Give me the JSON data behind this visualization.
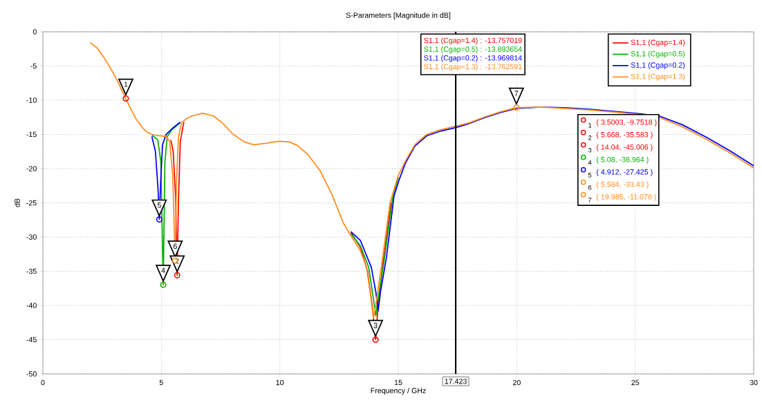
{
  "chart_data": {
    "type": "line",
    "title": "S-Parameters [Magnitude in dB]",
    "xlabel": "Frequency / GHz",
    "ylabel": "dB",
    "xlim": [
      0,
      30
    ],
    "ylim": [
      -50,
      0
    ],
    "xticks": [
      0,
      5,
      10,
      15,
      20,
      25,
      30
    ],
    "yticks": [
      0,
      -5,
      -10,
      -15,
      -20,
      -25,
      -30,
      -35,
      -40,
      -45,
      -50
    ],
    "grid": true,
    "legend": "top right",
    "series": [
      {
        "name": "S1,1 (Cgap=1.4)",
        "color": "#ff0000",
        "x": [
          5.4,
          5.5,
          5.6,
          5.668,
          5.72,
          5.8,
          5.95,
          9.0,
          13.0,
          13.4,
          13.7,
          13.9,
          14.04,
          14.15,
          14.35,
          14.7
        ],
        "values": [
          -15.8,
          -17.5,
          -24,
          -35.6,
          -25,
          -16,
          -13.2,
          null,
          -29.3,
          -31.5,
          -35,
          -40,
          -45.0,
          -40,
          -34,
          -25
        ]
      },
      {
        "name": "S1,1 (Cgap=0.5)",
        "color": "#00b000",
        "x": [
          4.6,
          4.85,
          4.98,
          5.08,
          5.15,
          5.25,
          5.45,
          5.8,
          9.0,
          13.0,
          13.4,
          13.75,
          13.95,
          14.05,
          14.15,
          14.4,
          14.75,
          15.0
        ],
        "values": [
          -15.1,
          -15.8,
          -19,
          -37.0,
          -19,
          -15.3,
          -14.3,
          -13.3,
          null,
          -29.5,
          -31.3,
          -34.4,
          -39,
          -41.5,
          -39,
          -33.5,
          -24.5,
          -21.3
        ]
      },
      {
        "name": "S1,1 (Cgap=0.2)",
        "color": "#0000ff",
        "x": [
          4.6,
          4.75,
          4.86,
          4.912,
          4.97,
          5.05,
          5.2,
          5.5,
          5.8,
          9.0,
          13.0,
          13.4,
          13.86,
          14.05,
          14.15,
          14.25,
          14.5,
          14.82,
          15.05,
          15.3,
          15.7,
          16.2,
          16.8,
          17.423,
          18.0,
          18.6,
          19.3,
          19.985,
          21.0,
          22.0,
          23.0,
          24.0,
          25.0,
          26.0,
          27.0,
          28.0,
          29.0,
          30.0
        ],
        "values": [
          -15.3,
          -17.5,
          -23,
          -27.4,
          -22,
          -16.5,
          -15.0,
          -14.0,
          -13.2,
          null,
          -29.2,
          -30.5,
          -34.4,
          -38,
          -40.8,
          -38,
          -33,
          -24,
          -21.5,
          -19.2,
          -16.7,
          -15.2,
          -14.5,
          -14.0,
          -13.4,
          -12.6,
          -11.8,
          -11.2,
          -11.0,
          -11.1,
          -11.3,
          -11.6,
          -11.9,
          -12.3,
          -13.6,
          -15.4,
          -17.4,
          -19.6
        ]
      },
      {
        "name": "S1,1 (Cgap=1.3)",
        "color": "#ff8c1a",
        "x": [
          2.0,
          2.3,
          2.57,
          2.9,
          3.15,
          3.5003,
          3.7,
          3.94,
          4.2,
          4.41,
          4.6,
          4.9,
          5.2,
          5.35,
          5.48,
          5.584,
          5.64,
          5.72,
          5.85,
          6.1,
          6.3,
          6.74,
          7.2,
          7.6,
          8.0,
          8.5,
          8.9,
          9.4,
          9.95,
          10.4,
          10.74,
          11.2,
          11.7,
          12.2,
          12.69,
          13.0,
          13.4,
          13.66,
          13.85,
          13.95,
          14.05,
          14.3,
          14.65,
          15.0,
          15.3,
          15.7,
          16.2,
          16.8,
          17.423,
          18.0,
          18.6,
          19.3,
          19.985,
          21.0,
          22.0,
          23.0,
          24.0,
          25.0,
          26.0,
          27.0,
          28.0,
          29.0,
          30.0
        ],
        "values": [
          -1.6,
          -2.4,
          -3.7,
          -5.6,
          -7.2,
          -9.8,
          -11.2,
          -12.8,
          -14.0,
          -14.7,
          -15.0,
          -15.2,
          -15.3,
          -16,
          -21,
          -33.4,
          -22,
          -15.5,
          -13.3,
          -12.6,
          -12.3,
          -11.9,
          -12.3,
          -13.4,
          -14.9,
          -16.1,
          -16.5,
          -16.3,
          -16.0,
          -16.1,
          -16.6,
          -18.0,
          -20.3,
          -23.8,
          -28.0,
          -29.8,
          -32,
          -34.4,
          -39,
          -41.8,
          -40,
          -34,
          -25,
          -21,
          -18.9,
          -16.5,
          -15.0,
          -14.3,
          -13.8,
          -13.3,
          -12.5,
          -11.7,
          -11.1,
          -11.0,
          -11.2,
          -11.4,
          -11.7,
          -12.0,
          -12.5,
          -13.9,
          -15.7,
          -17.7,
          -19.9
        ]
      },
      {
        "type": "scatter",
        "marker": "circle",
        "color": "#ff0000",
        "x": [
          3.5003,
          5.668,
          14.04
        ],
        "values": [
          -9.7518,
          -35.583,
          -45.006
        ]
      },
      {
        "type": "scatter",
        "marker": "circle",
        "color": "#00b000",
        "x": [
          5.08
        ],
        "values": [
          -36.964
        ]
      },
      {
        "type": "scatter",
        "marker": "circle",
        "color": "#0000ff",
        "x": [
          4.912
        ],
        "values": [
          -27.425
        ]
      },
      {
        "type": "scatter",
        "marker": "circle",
        "color": "#ff8c1a",
        "x": [
          5.584,
          19.985
        ],
        "values": [
          -33.43,
          -11.078
        ]
      }
    ],
    "ref_lines": [
      {
        "axis": "x",
        "value": 17.423,
        "label": "17.423",
        "color": "#000000"
      }
    ],
    "annotations": [
      {
        "text": "1",
        "x": 3.5003,
        "y": -9.7518
      },
      {
        "text": "2",
        "x": 5.668,
        "y": -35.583
      },
      {
        "text": "3",
        "x": 14.04,
        "y": -45.006
      },
      {
        "text": "4",
        "x": 5.08,
        "y": -36.964
      },
      {
        "text": "5",
        "x": 4.912,
        "y": -27.425
      },
      {
        "text": "6",
        "x": 5.584,
        "y": -33.43
      },
      {
        "text": "7",
        "x": 19.985,
        "y": -11.078
      },
      "( 3.5003, -9.7518 )",
      "( 5.668, -35.583 )",
      "( 14.04, -45.006 )",
      "( 5.08, -36.964 )",
      "( 4.912, -27.425 )",
      "( 5.584, -33.43 )",
      "( 19.985, -11.078 )",
      "S1,1 (Cgap=1.4) : -13.757019",
      "S1,1 (Cgap=0.5) : -13.893654",
      "S1,1 (Cgap=0.2) : -13.969814",
      "S1,1 (Cgap=1.3) : -13.762591"
    ]
  }
}
